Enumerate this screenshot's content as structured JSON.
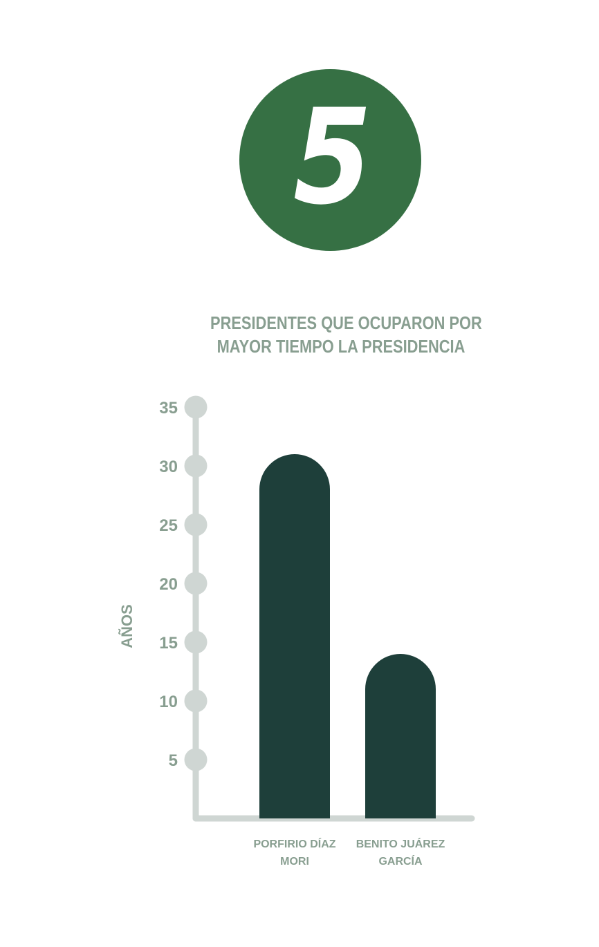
{
  "badge": {
    "number": "5"
  },
  "title_lines": [
    "PRESIDENTES QUE OCUPARON POR",
    "MAYOR TIEMPO LA PRESIDENCIA"
  ],
  "colors": {
    "badge": "#367044",
    "bar": "#1e3f3a",
    "axis": "#cfd6d3",
    "text": "#889e90"
  },
  "chart_data": {
    "type": "bar",
    "title": "PRESIDENTES QUE OCUPARON POR MAYOR TIEMPO LA PRESIDENCIA",
    "ylabel": "AÑOS",
    "xlabel": "",
    "ylim": [
      0,
      35
    ],
    "yticks": [
      5,
      10,
      15,
      20,
      25,
      30,
      35
    ],
    "categories": [
      [
        "PORFIRIO DÍAZ",
        "MORI"
      ],
      [
        "BENITO JUÁREZ",
        "GARCÍA"
      ]
    ],
    "values": [
      31,
      14
    ],
    "grid": false
  }
}
